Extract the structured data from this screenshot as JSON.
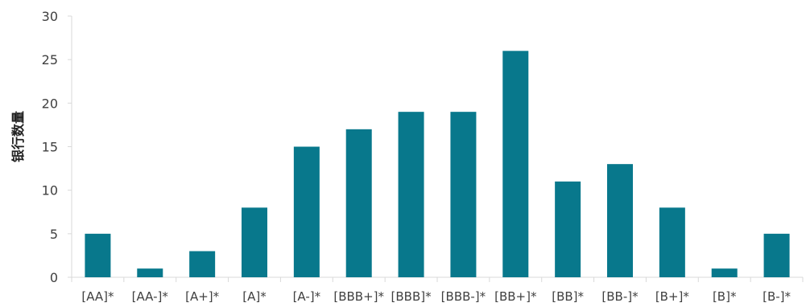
{
  "chart_data": {
    "type": "bar",
    "title": "",
    "xlabel": "",
    "ylabel": "银行数量",
    "categories": [
      "[AA]*",
      "[AA-]*",
      "[A+]*",
      "[A]*",
      "[A-]*",
      "[BBB+]*",
      "[BBB]*",
      "[BBB-]*",
      "[BB+]*",
      "[BB]*",
      "[BB-]*",
      "[B+]*",
      "[B]*",
      "[B-]*"
    ],
    "values": [
      5,
      1,
      3,
      8,
      15,
      17,
      19,
      19,
      26,
      11,
      13,
      8,
      1,
      5
    ],
    "ylim": [
      0,
      30
    ],
    "yticks": [
      0,
      5,
      10,
      15,
      20,
      25,
      30
    ],
    "grid": false,
    "legend": "none",
    "bar_color": "#08788c",
    "axis_color": "#d9d9d9",
    "text_color": "#404040"
  }
}
